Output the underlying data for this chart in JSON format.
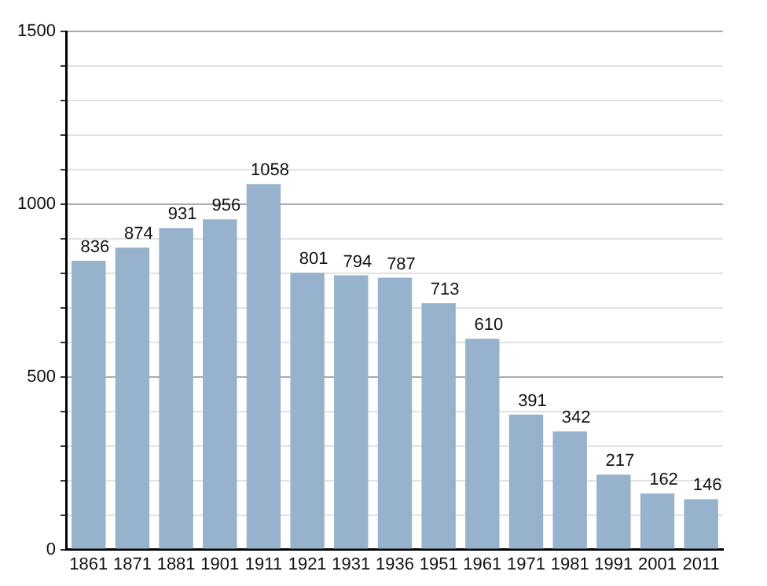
{
  "chart_data": {
    "type": "bar",
    "categories": [
      "1861",
      "1871",
      "1881",
      "1901",
      "1911",
      "1921",
      "1931",
      "1936",
      "1951",
      "1961",
      "1971",
      "1981",
      "1991",
      "2001",
      "2011"
    ],
    "values": [
      836,
      874,
      931,
      956,
      1058,
      801,
      794,
      787,
      713,
      610,
      391,
      342,
      217,
      162,
      146
    ],
    "color": "#97b2cd",
    "ylim": [
      0,
      1500
    ],
    "yticks": [
      0,
      {
        "value": 100,
        "label": null
      },
      {
        "value": 200,
        "label": null
      },
      {
        "value": 300,
        "label": null
      },
      {
        "value": 400,
        "label": null
      },
      500,
      {
        "value": 600,
        "label": null
      },
      {
        "value": 700,
        "label": null
      },
      {
        "value": 800,
        "label": null
      },
      {
        "value": 900,
        "label": null
      },
      1000,
      {
        "value": 1100,
        "label": null
      },
      {
        "value": 1200,
        "label": null
      },
      {
        "value": 1300,
        "label": null
      },
      {
        "value": 1400,
        "label": null
      },
      1500
    ],
    "grid": "y",
    "data_labels": true
  }
}
